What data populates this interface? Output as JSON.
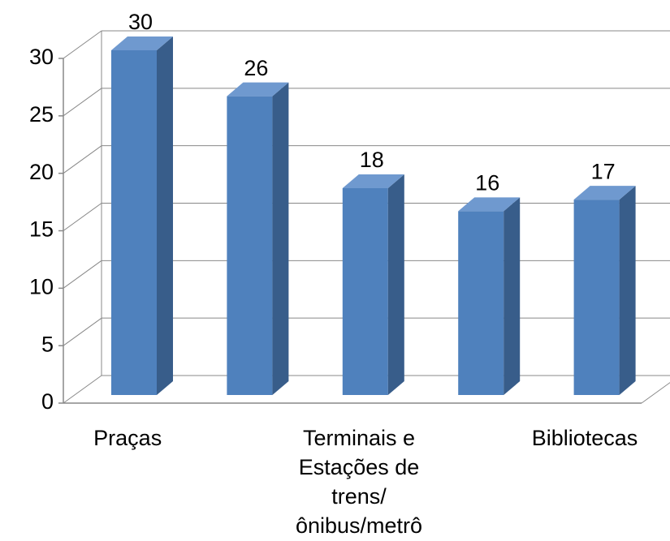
{
  "chart_data": {
    "type": "bar3d",
    "categories": [
      "Praças",
      null,
      "Terminais e Estações de trens/ônibus/metrô",
      null,
      "Bibliotecas"
    ],
    "values": [
      30,
      26,
      18,
      16,
      17
    ],
    "color": "#4f81bd",
    "side_color": "#385d8a",
    "top_color": "#6f99cf",
    "ylim": [
      0,
      30
    ],
    "yticks": [
      0,
      5,
      10,
      15,
      20,
      25,
      30
    ],
    "grid": true
  }
}
